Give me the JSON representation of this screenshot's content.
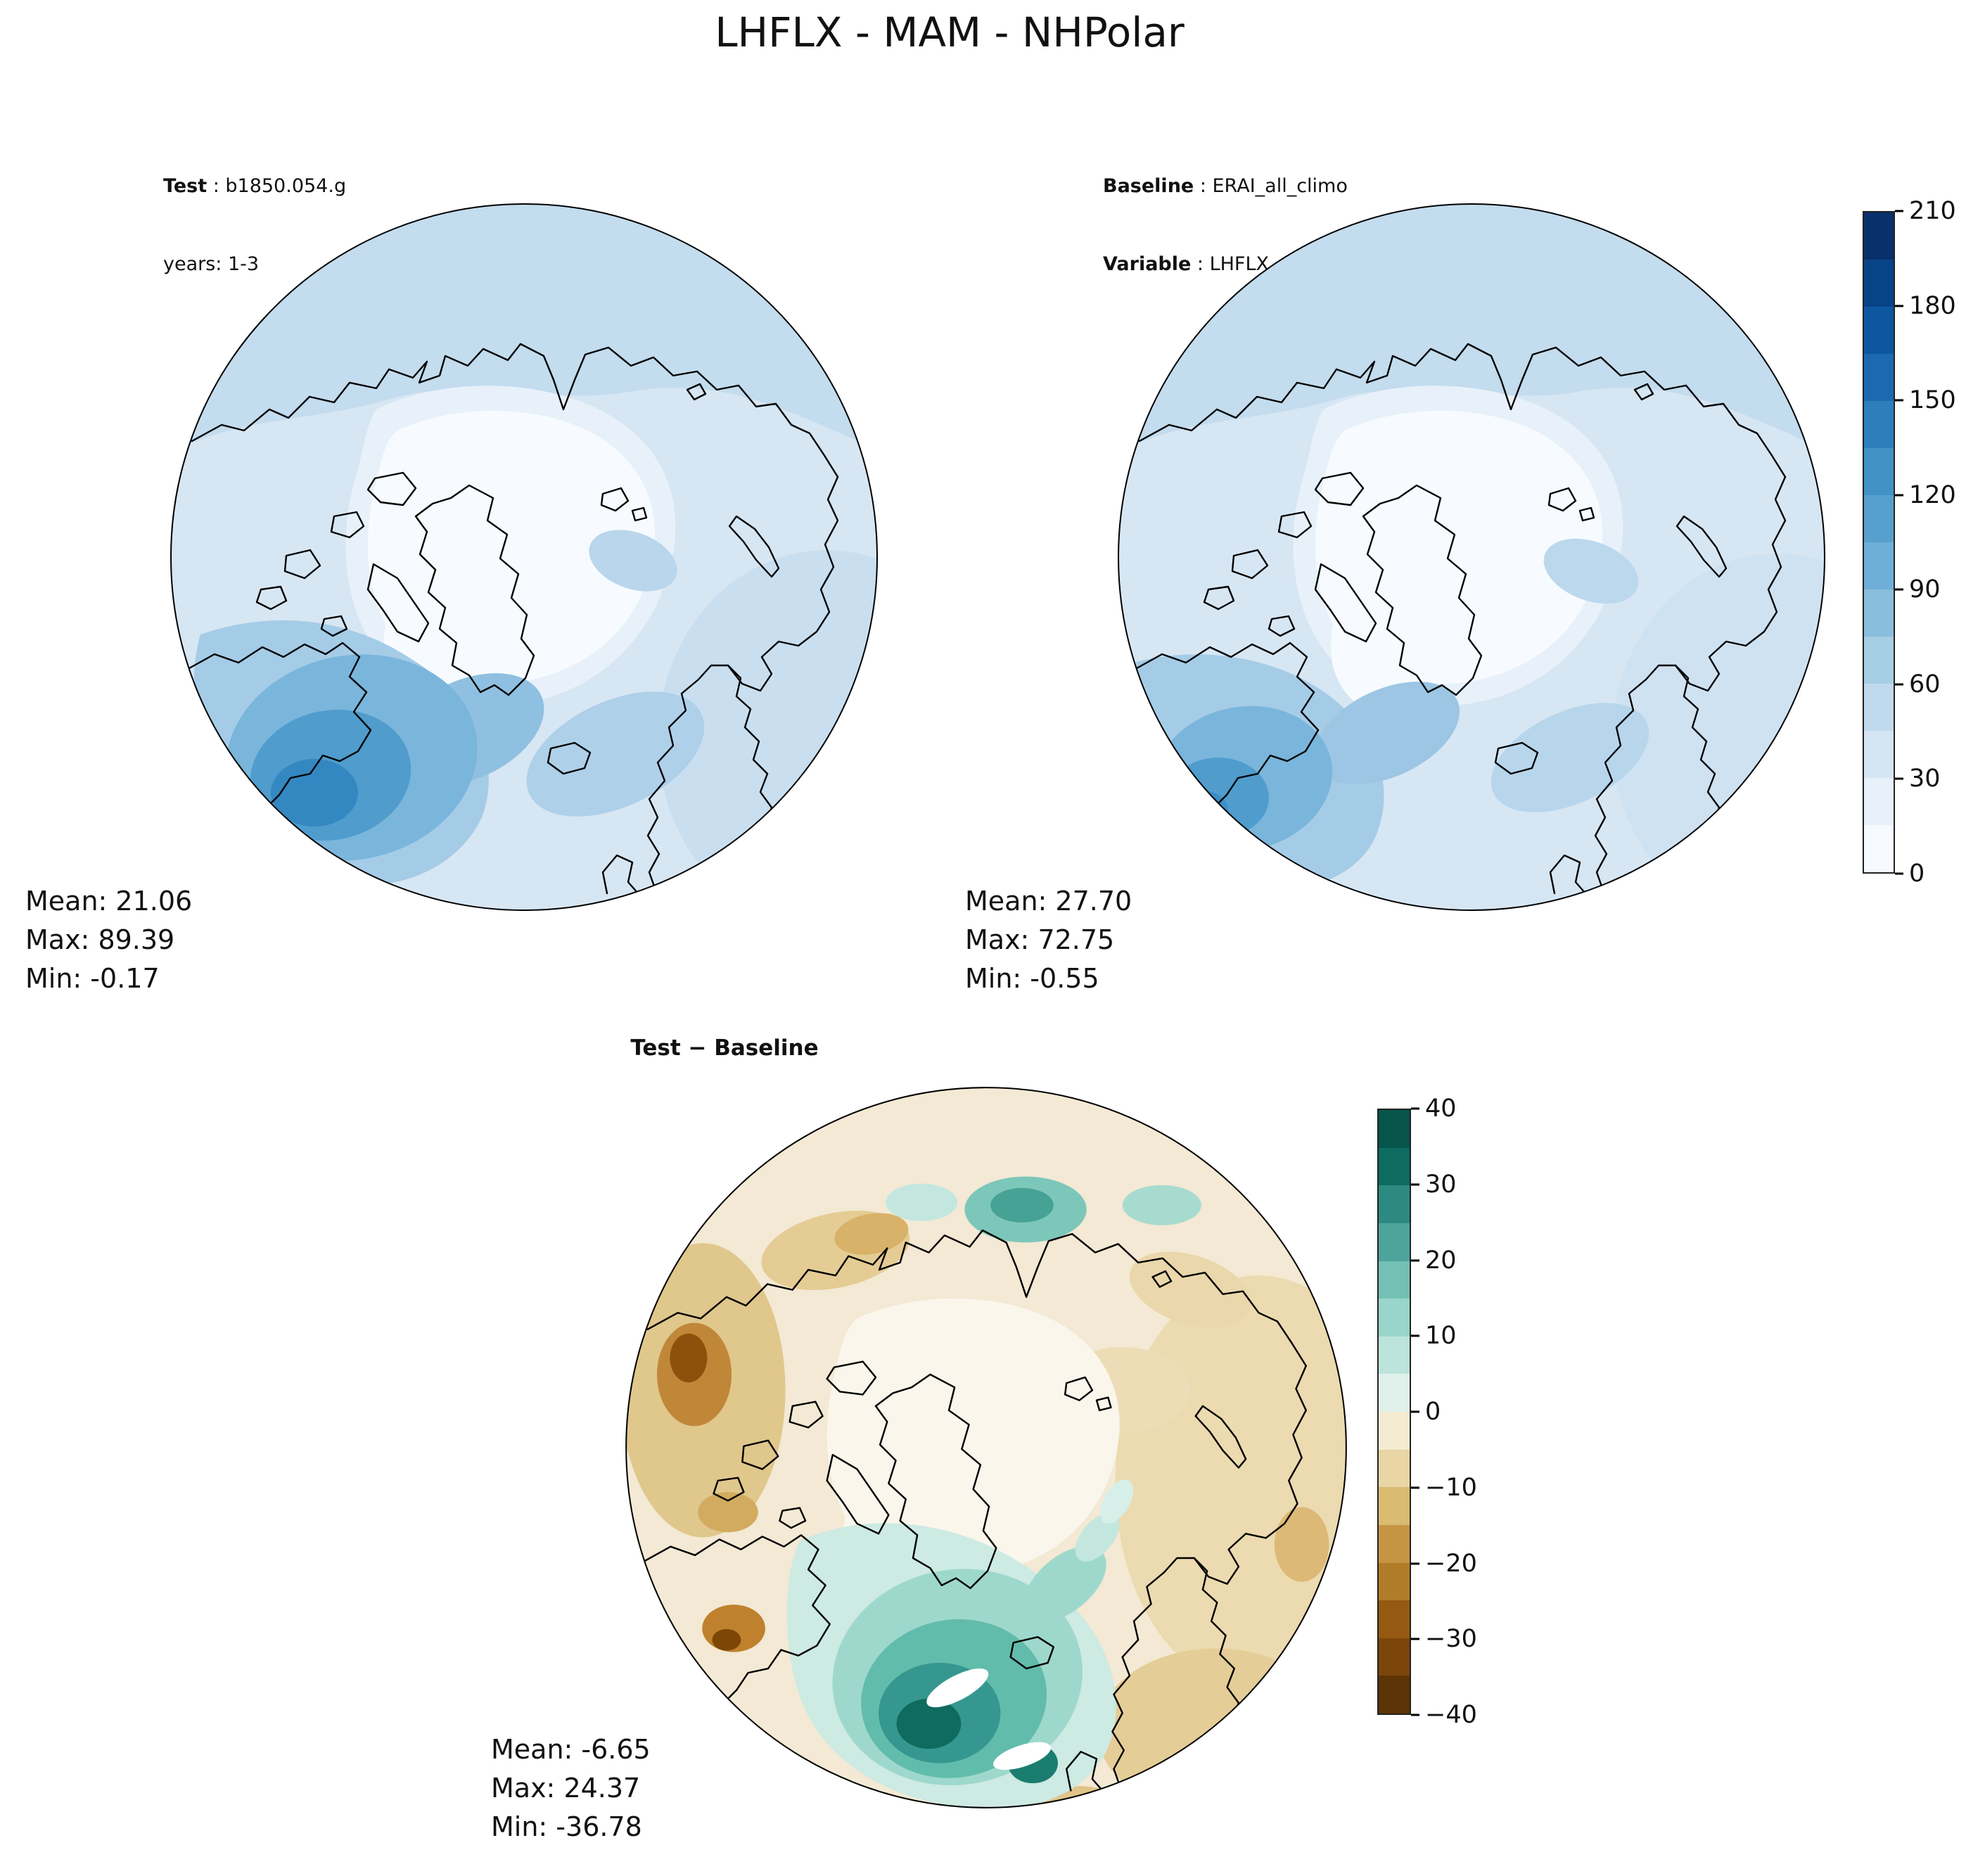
{
  "title": "LHFLX - MAM - NHPolar",
  "test_panel": {
    "label": "Test",
    "name": " : b1850.054.g",
    "years": "years: 1-3",
    "stats": {
      "mean": "Mean: 21.06",
      "max": "Max: 89.39",
      "min": "Min: -0.17"
    }
  },
  "baseline_panel": {
    "label": "Baseline",
    "name": " : ERAI_all_climo",
    "var_label": "Variable",
    "var_name": " : LHFLX",
    "stats": {
      "mean": "Mean: 27.70",
      "max": "Max: 72.75",
      "min": "Min: -0.55"
    }
  },
  "diff_panel": {
    "title": "Test − Baseline",
    "stats": {
      "mean": "Mean: -6.65",
      "max": "Max: 24.37",
      "min": "Min: -36.78"
    }
  },
  "colorbar_main": {
    "ticks": [
      "210",
      "180",
      "150",
      "120",
      "90",
      "60",
      "30",
      "0"
    ],
    "colors": [
      "#08306b",
      "#084387",
      "#0d57a1",
      "#1c69af",
      "#2e7ebc",
      "#4292c6",
      "#57a0ce",
      "#6fafd7",
      "#89bedc",
      "#a6cee4",
      "#c0d9ed",
      "#d6e5f4",
      "#e8f1fa",
      "#f7fbff"
    ]
  },
  "colorbar_diff": {
    "ticks": [
      "40",
      "30",
      "20",
      "10",
      "0",
      "−10",
      "−20",
      "−30",
      "−40"
    ],
    "colors": [
      "#06544a",
      "#0d6b60",
      "#2c8a80",
      "#4da49a",
      "#74c0b4",
      "#99d5ca",
      "#bce4dc",
      "#e0f1ec",
      "#f4ecd2",
      "#e9d6a4",
      "#d9bc72",
      "#c69544",
      "#b17c28",
      "#965911",
      "#7c460a",
      "#5c3405"
    ]
  },
  "chart_data": [
    {
      "type": "heatmap",
      "panel": "test",
      "title": "Test: b1850.054.g",
      "years": "1-3",
      "variable": "LHFLX",
      "season": "MAM",
      "region": "NHPolar",
      "projection": "north_polar_stereographic",
      "colormap": "Blues",
      "colorbar_range": [
        0,
        210
      ],
      "colorbar_ticks": [
        0,
        30,
        60,
        90,
        120,
        150,
        180,
        210
      ],
      "stats": {
        "mean": 21.06,
        "max": 89.39,
        "min": -0.17
      }
    },
    {
      "type": "heatmap",
      "panel": "baseline",
      "title": "Baseline: ERAI_all_climo",
      "variable": "LHFLX",
      "season": "MAM",
      "region": "NHPolar",
      "projection": "north_polar_stereographic",
      "colormap": "Blues",
      "colorbar_range": [
        0,
        210
      ],
      "colorbar_ticks": [
        0,
        30,
        60,
        90,
        120,
        150,
        180,
        210
      ],
      "stats": {
        "mean": 27.7,
        "max": 72.75,
        "min": -0.55
      }
    },
    {
      "type": "heatmap",
      "panel": "difference",
      "title": "Test − Baseline",
      "variable": "LHFLX",
      "season": "MAM",
      "region": "NHPolar",
      "projection": "north_polar_stereographic",
      "colormap": "BrBG",
      "colorbar_range": [
        -40,
        40
      ],
      "colorbar_ticks": [
        -40,
        -30,
        -20,
        -10,
        0,
        10,
        20,
        30,
        40
      ],
      "stats": {
        "mean": -6.65,
        "max": 24.37,
        "min": -36.78
      }
    }
  ]
}
